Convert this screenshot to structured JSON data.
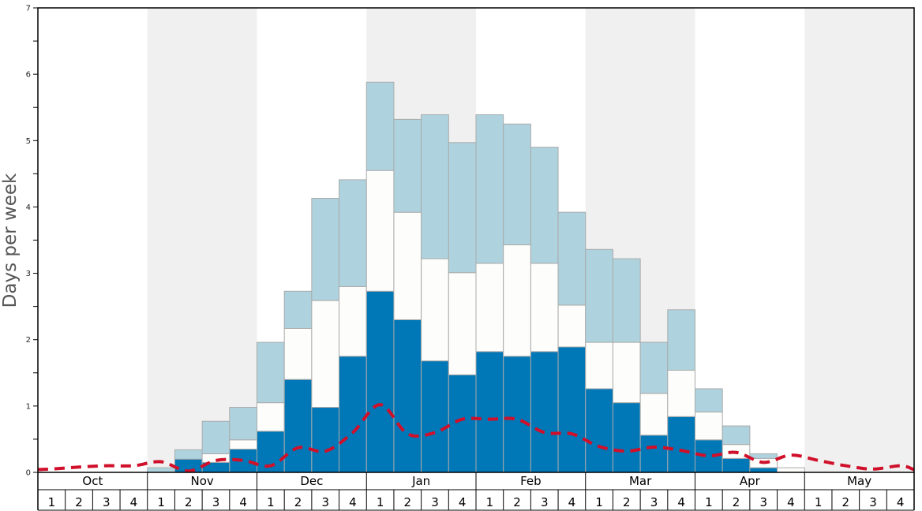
{
  "chart_data": {
    "type": "bar",
    "stacked": true,
    "ylabel": "Days per week",
    "ylim": [
      0,
      7
    ],
    "y_ticks": [
      0,
      1,
      2,
      3,
      4,
      5,
      6,
      7
    ],
    "months": [
      "Oct",
      "Nov",
      "Dec",
      "Jan",
      "Feb",
      "Mar",
      "Apr",
      "May"
    ],
    "weeks": [
      "1",
      "2",
      "3",
      "4"
    ],
    "colors": {
      "dark": "#0077b6",
      "white": "#fdfdfb",
      "light": "#aed3df",
      "bar_edge": "#aaaaaa",
      "dashed_line": "#d0102a",
      "shade": "#f0f0f0"
    },
    "series": [
      {
        "key": "dark",
        "values": [
          0,
          0,
          0,
          0,
          0,
          0.2,
          0.15,
          0.35,
          0.62,
          1.4,
          0.98,
          1.75,
          2.73,
          2.3,
          1.68,
          1.47,
          1.82,
          1.75,
          1.82,
          1.89,
          1.26,
          1.05,
          0.56,
          0.84,
          0.49,
          0.21,
          0.07,
          0,
          0,
          0,
          0,
          0
        ]
      },
      {
        "key": "white",
        "values": [
          0,
          0,
          0,
          0,
          0,
          0,
          0.13,
          0.14,
          0.43,
          0.77,
          1.61,
          1.05,
          1.82,
          1.62,
          1.54,
          1.54,
          1.33,
          1.68,
          1.33,
          0.63,
          0.7,
          0.91,
          0.63,
          0.7,
          0.42,
          0.21,
          0.14,
          0.07,
          0,
          0,
          0,
          0
        ]
      },
      {
        "key": "light",
        "values": [
          0,
          0,
          0,
          0,
          0.07,
          0.14,
          0.49,
          0.49,
          0.91,
          0.56,
          1.54,
          1.61,
          1.33,
          1.4,
          2.17,
          1.96,
          2.24,
          1.82,
          1.75,
          1.4,
          1.4,
          1.26,
          0.77,
          0.91,
          0.35,
          0.28,
          0.07,
          0,
          0,
          0,
          0,
          0
        ]
      }
    ],
    "line_values": [
      0.05,
      0.08,
      0.1,
      0.1,
      0.16,
      0.02,
      0.18,
      0.18,
      0.1,
      0.37,
      0.32,
      0.6,
      1.02,
      0.58,
      0.6,
      0.8,
      0.8,
      0.8,
      0.6,
      0.58,
      0.39,
      0.32,
      0.38,
      0.33,
      0.25,
      0.3,
      0.15,
      0.26,
      0.18,
      0.1,
      0.05,
      0.1
    ]
  }
}
